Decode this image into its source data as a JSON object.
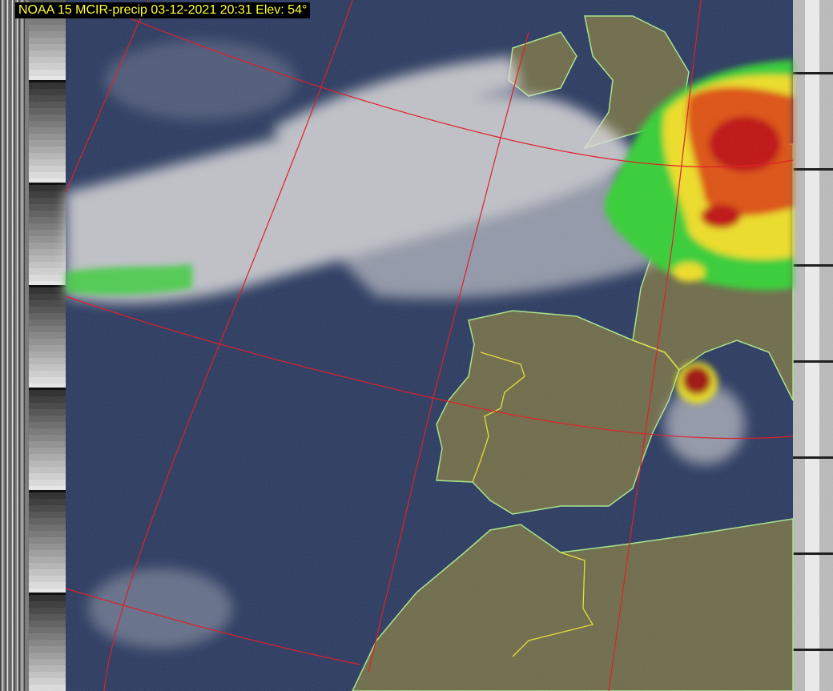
{
  "title": "NOAA 15 MCIR-precip 03-12-2021 20:31 Elev: 54°",
  "colors": {
    "ocean": "#27375e",
    "land": "#6d6a47",
    "cloud": "#dcdcdc",
    "grid": "#e0202a",
    "coast": "#a8e88a",
    "border": "#e8e030",
    "title_text": "#ffff33",
    "precip_low": "#30d030",
    "precip_mid": "#f0e020",
    "precip_high": "#d01010"
  }
}
